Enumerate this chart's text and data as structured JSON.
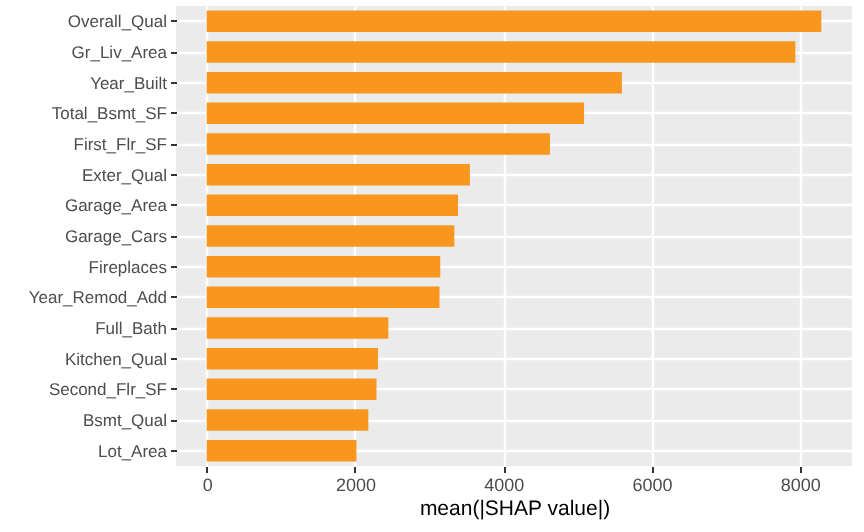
{
  "chart_data": {
    "type": "bar",
    "orientation": "horizontal",
    "xlabel": "mean(|SHAP value|)",
    "categories": [
      "Overall_Qual",
      "Gr_Liv_Area",
      "Year_Built",
      "Total_Bsmt_SF",
      "First_Flr_SF",
      "Exter_Qual",
      "Garage_Area",
      "Garage_Cars",
      "Fireplaces",
      "Year_Remod_Add",
      "Full_Bath",
      "Kitchen_Qual",
      "Second_Flr_SF",
      "Bsmt_Qual",
      "Lot_Area"
    ],
    "values": [
      8290,
      7940,
      5600,
      5090,
      4630,
      3550,
      3390,
      3340,
      3150,
      3140,
      2450,
      2310,
      2290,
      2180,
      2020
    ],
    "color": "#f8961e",
    "xlim": [
      -414,
      8704
    ],
    "xticks": [
      0,
      2000,
      4000,
      6000,
      8000
    ],
    "grid": true
  }
}
